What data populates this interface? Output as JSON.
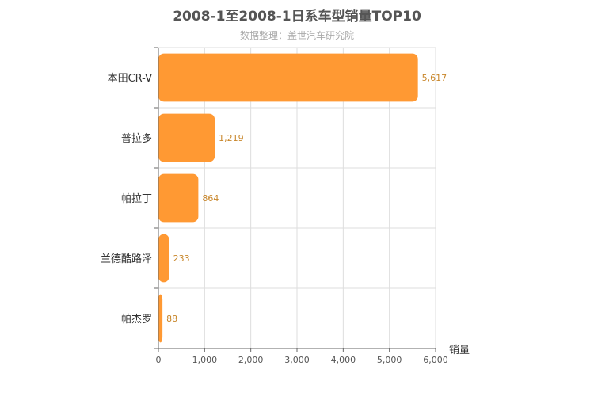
{
  "chart_data": {
    "type": "bar",
    "orientation": "horizontal",
    "title": "2008-1至2008-1日系车型销量TOP10",
    "subtitle": "数据整理：盖世汽车研究院",
    "categories": [
      "本田CR-V",
      "普拉多",
      "帕拉丁",
      "兰德酷路泽",
      "帕杰罗"
    ],
    "values": [
      5617,
      1219,
      864,
      233,
      88
    ],
    "value_labels": [
      "5,617",
      "1,219",
      "864",
      "233",
      "88"
    ],
    "xlabel": "销量",
    "xlim": [
      0,
      6000
    ],
    "xticks": [
      0,
      1000,
      2000,
      3000,
      4000,
      5000,
      6000
    ],
    "xtick_labels": [
      "0",
      "1,000",
      "2,000",
      "3,000",
      "4,000",
      "5,000",
      "6,000"
    ],
    "grid": true,
    "bar_color": "#ff9933"
  }
}
